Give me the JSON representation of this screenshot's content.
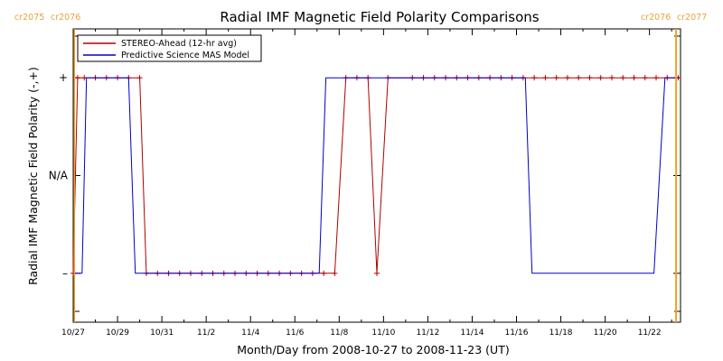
{
  "chart_data": {
    "type": "line",
    "title": "Radial IMF Magnetic Field Polarity Comparisons",
    "xlabel": "Month/Day from 2008-10-27 to 2008-11-23 (UT)",
    "ylabel": "Radial IMF Magnetic Field Polarity (-,+)",
    "x_unit": "days from 2008-10-27",
    "xlim": [
      0,
      27.4
    ],
    "ylim": [
      -1.5,
      1.5
    ],
    "x_tick_values": [
      0,
      2,
      4,
      6,
      8,
      10,
      12,
      14,
      16,
      18,
      20,
      22,
      24,
      26
    ],
    "x_tick_labels": [
      "10/27",
      "10/29",
      "10/31",
      "11/2",
      "11/4",
      "11/6",
      "11/8",
      "11/10",
      "11/12",
      "11/14",
      "11/16",
      "11/18",
      "11/20",
      "11/22"
    ],
    "y_tick_values": [
      1,
      0,
      -1
    ],
    "y_tick_labels": [
      "+",
      "N/A",
      "–"
    ],
    "legend_position": "top-left",
    "carrington_markers": [
      {
        "x": 0.05,
        "left_label": "cr2075",
        "right_label": "cr2076"
      },
      {
        "x": 27.2,
        "left_label": "cr2076",
        "right_label": "cr2077"
      }
    ],
    "series": [
      {
        "name": "STEREO-Ahead (12-hr avg)",
        "color": "#b00000",
        "x": [
          0.0,
          0.2,
          0.5,
          1.0,
          1.5,
          2.0,
          2.5,
          3.0,
          3.3,
          3.8,
          4.3,
          4.8,
          5.3,
          5.8,
          6.3,
          6.8,
          7.3,
          7.8,
          8.3,
          8.8,
          9.3,
          9.8,
          10.3,
          10.8,
          11.3,
          11.8,
          12.3,
          12.8,
          13.3,
          13.7,
          14.2,
          15.3,
          15.8,
          16.3,
          16.8,
          17.3,
          17.8,
          18.3,
          18.8,
          19.3,
          19.8,
          20.3,
          20.8,
          21.3,
          21.8,
          22.3,
          22.8,
          23.3,
          23.8,
          24.3,
          24.8,
          25.3,
          25.8,
          26.3,
          26.8,
          27.3
        ],
        "y": [
          -1,
          1,
          1,
          1,
          1,
          1,
          1,
          1,
          -1,
          -1,
          -1,
          -1,
          -1,
          -1,
          -1,
          -1,
          -1,
          -1,
          -1,
          -1,
          -1,
          -1,
          -1,
          -1,
          -1,
          -1,
          1,
          1,
          1,
          -1,
          1,
          1,
          1,
          1,
          1,
          1,
          1,
          1,
          1,
          1,
          1,
          1,
          1,
          1,
          1,
          1,
          1,
          1,
          1,
          1,
          1,
          1,
          1,
          1,
          1,
          1
        ]
      },
      {
        "name": "Predictive Science MAS Model",
        "color": "#0000cc",
        "x": [
          0.0,
          0.4,
          0.6,
          2.5,
          2.8,
          11.1,
          11.4,
          20.4,
          20.7,
          26.2,
          26.7,
          27.3
        ],
        "y": [
          -1,
          -1,
          1,
          1,
          -1,
          -1,
          1,
          1,
          -1,
          -1,
          1,
          1
        ]
      }
    ]
  }
}
